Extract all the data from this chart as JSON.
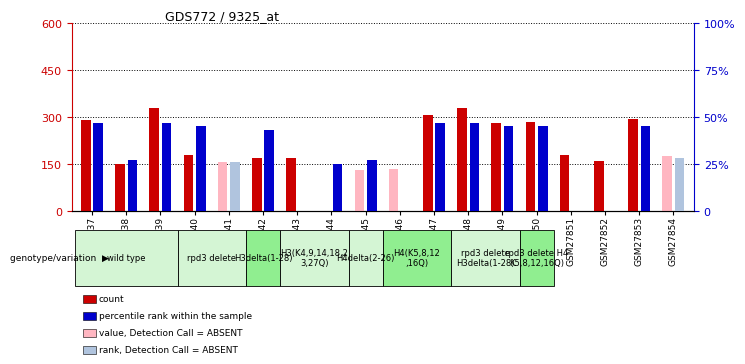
{
  "title": "GDS772 / 9325_at",
  "samples": [
    "GSM27837",
    "GSM27838",
    "GSM27839",
    "GSM27840",
    "GSM27841",
    "GSM27842",
    "GSM27843",
    "GSM27844",
    "GSM27845",
    "GSM27846",
    "GSM27847",
    "GSM27848",
    "GSM27849",
    "GSM27850",
    "GSM27851",
    "GSM27852",
    "GSM27853",
    "GSM27854"
  ],
  "count_values": [
    290,
    150,
    330,
    178,
    null,
    168,
    168,
    null,
    null,
    null,
    308,
    330,
    280,
    285,
    178,
    158,
    295,
    null
  ],
  "count_absent": [
    null,
    null,
    null,
    null,
    155,
    null,
    null,
    null,
    130,
    135,
    null,
    null,
    null,
    null,
    null,
    null,
    null,
    175
  ],
  "rank_values": [
    47,
    27,
    47,
    45,
    null,
    43,
    null,
    25,
    27,
    null,
    47,
    47,
    45,
    45,
    null,
    null,
    45,
    null
  ],
  "rank_absent": [
    null,
    null,
    null,
    null,
    26,
    null,
    null,
    null,
    null,
    null,
    null,
    null,
    null,
    null,
    null,
    null,
    null,
    28
  ],
  "ylim_left": [
    0,
    600
  ],
  "ylim_right": [
    0,
    100
  ],
  "yticks_left": [
    0,
    150,
    300,
    450,
    600
  ],
  "yticks_right": [
    0,
    25,
    50,
    75,
    100
  ],
  "genotype_groups": [
    {
      "label": "wild type",
      "start": 0,
      "end": 2,
      "color": "#d4f5d4"
    },
    {
      "label": "rpd3 delete",
      "start": 3,
      "end": 4,
      "color": "#d4f5d4"
    },
    {
      "label": "H3delta(1-28)",
      "start": 5,
      "end": 5,
      "color": "#90ee90"
    },
    {
      "label": "H3(K4,9,14,18,2\n3,27Q)",
      "start": 6,
      "end": 7,
      "color": "#d4f5d4"
    },
    {
      "label": "H4delta(2-26)",
      "start": 8,
      "end": 8,
      "color": "#d4f5d4"
    },
    {
      "label": "H4(K5,8,12\n,16Q)",
      "start": 9,
      "end": 10,
      "color": "#90ee90"
    },
    {
      "label": "rpd3 delete\nH3delta(1-28)",
      "start": 11,
      "end": 12,
      "color": "#d4f5d4"
    },
    {
      "label": "rpd3 delete H4\nK5,8,12,16Q)",
      "start": 13,
      "end": 13,
      "color": "#90ee90"
    }
  ],
  "count_color": "#cc0000",
  "rank_color": "#0000cc",
  "absent_count_color": "#ffb6c1",
  "absent_rank_color": "#b0c4de",
  "left_axis_color": "#cc0000",
  "right_axis_color": "#0000cc",
  "bg_color": "white"
}
